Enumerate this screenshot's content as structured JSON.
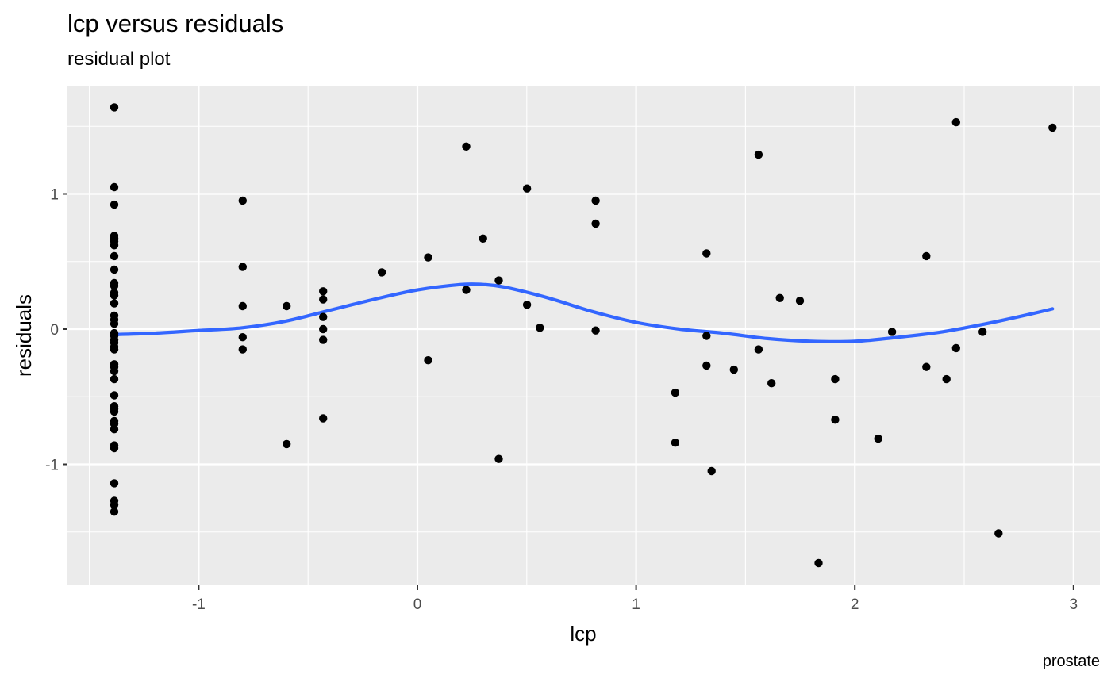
{
  "chart_data": {
    "type": "scatter",
    "title": "lcp versus residuals",
    "subtitle": "residual plot",
    "caption": "prostate",
    "xlabel": "lcp",
    "ylabel": "residuals",
    "xlim": [
      -1.5,
      3.0
    ],
    "ylim": [
      -1.9,
      1.8
    ],
    "xticks": [
      -1,
      0,
      1,
      2,
      3
    ],
    "yticks": [
      -1,
      0,
      1
    ],
    "xtick_labels": [
      "-1",
      "0",
      "1",
      "2",
      "3"
    ],
    "ytick_labels": [
      "-1",
      "0",
      "1"
    ],
    "grid": true,
    "background": "#ebebeb",
    "point_color": "#000000",
    "smooth_color": "#3366ff",
    "points": [
      [
        -1.386,
        1.64
      ],
      [
        -1.386,
        1.05
      ],
      [
        -1.386,
        0.92
      ],
      [
        -1.386,
        0.69
      ],
      [
        -1.386,
        0.67
      ],
      [
        -1.386,
        0.65
      ],
      [
        -1.386,
        0.62
      ],
      [
        -1.386,
        0.54
      ],
      [
        -1.386,
        0.44
      ],
      [
        -1.386,
        0.34
      ],
      [
        -1.386,
        0.32
      ],
      [
        -1.386,
        0.27
      ],
      [
        -1.386,
        0.25
      ],
      [
        -1.386,
        0.19
      ],
      [
        -1.386,
        0.1
      ],
      [
        -1.386,
        0.07
      ],
      [
        -1.386,
        0.04
      ],
      [
        -1.386,
        -0.03
      ],
      [
        -1.386,
        -0.05
      ],
      [
        -1.386,
        -0.08
      ],
      [
        -1.386,
        -0.1
      ],
      [
        -1.386,
        -0.13
      ],
      [
        -1.386,
        -0.15
      ],
      [
        -1.386,
        -0.26
      ],
      [
        -1.386,
        -0.28
      ],
      [
        -1.386,
        -0.31
      ],
      [
        -1.386,
        -0.37
      ],
      [
        -1.386,
        -0.49
      ],
      [
        -1.386,
        -0.57
      ],
      [
        -1.386,
        -0.59
      ],
      [
        -1.386,
        -0.61
      ],
      [
        -1.386,
        -0.68
      ],
      [
        -1.386,
        -0.7
      ],
      [
        -1.386,
        -0.74
      ],
      [
        -1.386,
        -0.86
      ],
      [
        -1.386,
        -0.88
      ],
      [
        -1.386,
        -1.14
      ],
      [
        -1.386,
        -1.27
      ],
      [
        -1.386,
        -1.3
      ],
      [
        -1.386,
        -1.35
      ],
      [
        -0.799,
        0.95
      ],
      [
        -0.799,
        0.46
      ],
      [
        -0.799,
        0.17
      ],
      [
        -0.799,
        -0.06
      ],
      [
        -0.799,
        -0.15
      ],
      [
        -0.598,
        0.17
      ],
      [
        -0.598,
        -0.85
      ],
      [
        -0.431,
        0.28
      ],
      [
        -0.431,
        0.22
      ],
      [
        -0.431,
        0.09
      ],
      [
        -0.431,
        0.0
      ],
      [
        -0.431,
        -0.08
      ],
      [
        -0.431,
        -0.66
      ],
      [
        -0.163,
        0.42
      ],
      [
        0.049,
        0.53
      ],
      [
        0.049,
        -0.23
      ],
      [
        0.223,
        1.35
      ],
      [
        0.223,
        0.29
      ],
      [
        0.3,
        0.67
      ],
      [
        0.372,
        0.36
      ],
      [
        0.372,
        -0.96
      ],
      [
        0.501,
        1.04
      ],
      [
        0.501,
        0.18
      ],
      [
        0.56,
        0.01
      ],
      [
        0.815,
        0.95
      ],
      [
        0.815,
        0.78
      ],
      [
        0.815,
        -0.01
      ],
      [
        1.179,
        -0.47
      ],
      [
        1.179,
        -0.84
      ],
      [
        1.322,
        0.56
      ],
      [
        1.322,
        -0.05
      ],
      [
        1.322,
        -0.27
      ],
      [
        1.345,
        -1.05
      ],
      [
        1.447,
        -0.3
      ],
      [
        1.56,
        1.29
      ],
      [
        1.56,
        -0.15
      ],
      [
        1.619,
        -0.4
      ],
      [
        1.657,
        0.23
      ],
      [
        1.749,
        0.21
      ],
      [
        1.834,
        -1.73
      ],
      [
        1.91,
        -0.37
      ],
      [
        1.91,
        -0.67
      ],
      [
        2.107,
        -0.81
      ],
      [
        2.17,
        -0.02
      ],
      [
        2.327,
        0.54
      ],
      [
        2.327,
        -0.28
      ],
      [
        2.419,
        -0.37
      ],
      [
        2.463,
        1.53
      ],
      [
        2.463,
        -0.14
      ],
      [
        2.584,
        -0.02
      ],
      [
        2.657,
        -1.51
      ],
      [
        2.904,
        1.49
      ]
    ],
    "smooth": [
      [
        -1.386,
        -0.04
      ],
      [
        -1.2,
        -0.03
      ],
      [
        -1.0,
        -0.01
      ],
      [
        -0.8,
        0.01
      ],
      [
        -0.6,
        0.06
      ],
      [
        -0.4,
        0.14
      ],
      [
        -0.2,
        0.22
      ],
      [
        0.0,
        0.29
      ],
      [
        0.2,
        0.33
      ],
      [
        0.3,
        0.33
      ],
      [
        0.4,
        0.31
      ],
      [
        0.6,
        0.23
      ],
      [
        0.8,
        0.13
      ],
      [
        1.0,
        0.05
      ],
      [
        1.2,
        0.0
      ],
      [
        1.4,
        -0.03
      ],
      [
        1.6,
        -0.07
      ],
      [
        1.8,
        -0.09
      ],
      [
        2.0,
        -0.09
      ],
      [
        2.2,
        -0.06
      ],
      [
        2.4,
        -0.02
      ],
      [
        2.6,
        0.04
      ],
      [
        2.8,
        0.11
      ],
      [
        2.904,
        0.15
      ]
    ]
  }
}
